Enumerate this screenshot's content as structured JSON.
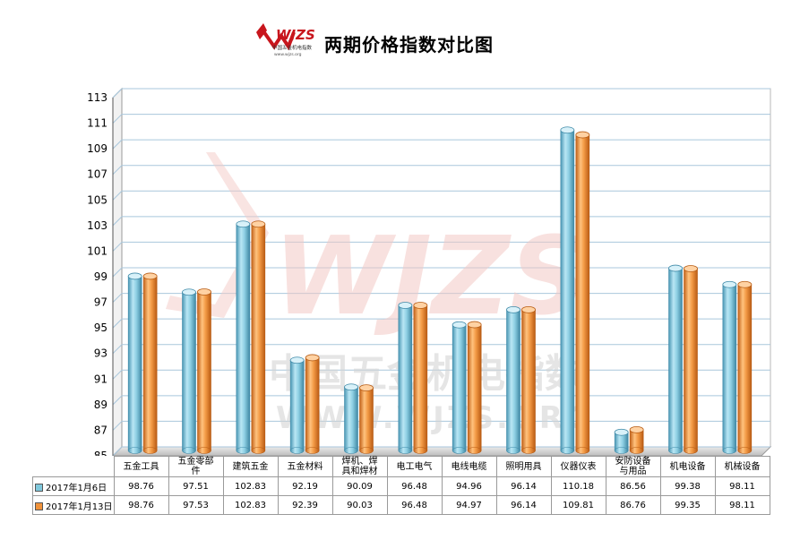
{
  "header": {
    "logo_text": "WJZS",
    "logo_subtext": "中国五金机电指数",
    "logo_url": "www.wjzs.org",
    "title": "两期价格指数对比图"
  },
  "watermark": {
    "logo_text": "WJZS",
    "line1": "中国五金机电指数",
    "line2": "WWW.WJZS.ORG"
  },
  "colors": {
    "series1": "#7fc8dc",
    "series2": "#f0923a",
    "watermark": "#f3c9c5"
  },
  "chart_data": {
    "type": "bar",
    "categories": [
      "五金工具",
      "五金零部件",
      "建筑五金",
      "五金材料",
      "焊机、焊具和焊材",
      "电工电气",
      "电线电缆",
      "照明用具",
      "仪器仪表",
      "安防设备与用品",
      "机电设备",
      "机械设备"
    ],
    "category_labels": [
      [
        "五金工具"
      ],
      [
        "五金零部",
        "件"
      ],
      [
        "建筑五金"
      ],
      [
        "五金材料"
      ],
      [
        "焊机、焊",
        "具和焊材"
      ],
      [
        "电工电气"
      ],
      [
        "电线电缆"
      ],
      [
        "照明用具"
      ],
      [
        "仪器仪表"
      ],
      [
        "安防设备",
        "与用品"
      ],
      [
        "机电设备"
      ],
      [
        "机械设备"
      ]
    ],
    "series": [
      {
        "name": "2017年1月6日",
        "values": [
          98.76,
          97.51,
          102.83,
          92.19,
          90.09,
          96.48,
          94.96,
          96.14,
          110.18,
          86.56,
          99.38,
          98.11
        ]
      },
      {
        "name": "2017年1月13日",
        "values": [
          98.76,
          97.53,
          102.83,
          92.39,
          90.03,
          96.48,
          94.97,
          96.14,
          109.81,
          86.76,
          99.35,
          98.11
        ]
      }
    ],
    "ylim": [
      85,
      113
    ],
    "yticks": [
      85,
      87,
      89,
      91,
      93,
      95,
      97,
      99,
      101,
      103,
      105,
      107,
      109,
      111,
      113
    ],
    "grid": true,
    "legend": "data-table"
  }
}
